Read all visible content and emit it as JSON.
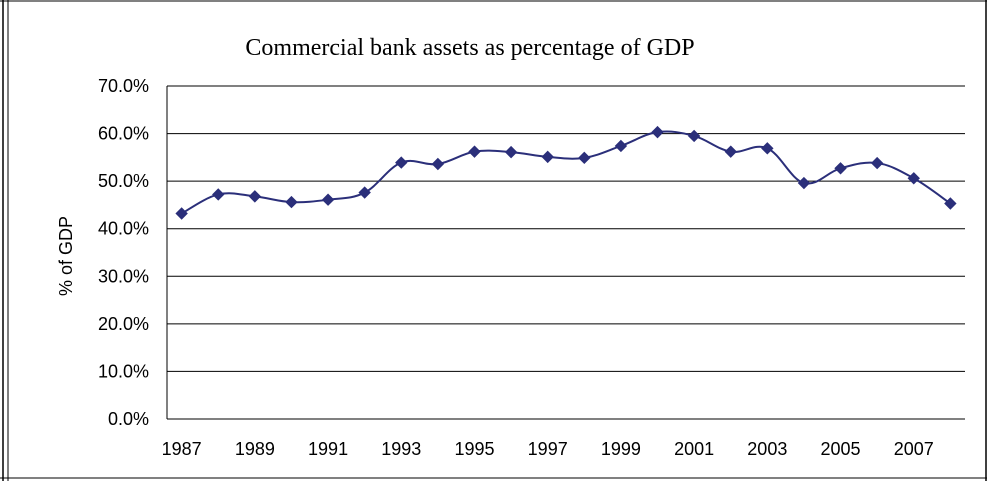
{
  "chart_data": {
    "type": "line",
    "title": "Commercial bank assets as percentage of GDP",
    "xlabel": "",
    "ylabel": "% of GDP",
    "xlim": [
      1987,
      2008
    ],
    "ylim": [
      0,
      0.7
    ],
    "y_ticks": [
      "0.0%",
      "10.0%",
      "20.0%",
      "30.0%",
      "40.0%",
      "50.0%",
      "60.0%",
      "70.0%"
    ],
    "x_ticks": [
      "1987",
      "1989",
      "1991",
      "1993",
      "1995",
      "1997",
      "1999",
      "2001",
      "2003",
      "2005",
      "2007"
    ],
    "grid": "horizontal",
    "legend": "none",
    "series": [
      {
        "color": "#2b2f7a",
        "marker": "diamond",
        "smooth": true,
        "x": [
          1987,
          1988,
          1989,
          1990,
          1991,
          1992,
          1993,
          1994,
          1995,
          1996,
          1997,
          1998,
          1999,
          2000,
          2001,
          2002,
          2003,
          2004,
          2005,
          2006,
          2007,
          2008
        ],
        "y": [
          0.432,
          0.472,
          0.468,
          0.456,
          0.461,
          0.476,
          0.539,
          0.536,
          0.562,
          0.561,
          0.551,
          0.549,
          0.574,
          0.603,
          0.595,
          0.562,
          0.569,
          0.496,
          0.527,
          0.538,
          0.506,
          0.453
        ]
      }
    ]
  }
}
